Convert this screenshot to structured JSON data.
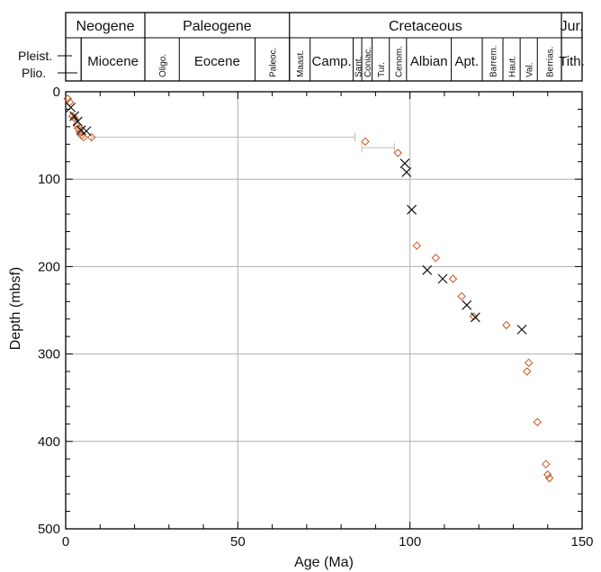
{
  "timescale": {
    "periods": [
      {
        "label": "Neogene",
        "start": 0,
        "end": 23
      },
      {
        "label": "Paleogene",
        "start": 23,
        "end": 65
      },
      {
        "label": "Cretaceous",
        "start": 65,
        "end": 144
      },
      {
        "label": "Jur.",
        "start": 144,
        "end": 150
      }
    ],
    "epochs_side": [
      {
        "label": "Pleist."
      },
      {
        "label": "Plio."
      }
    ],
    "stages": [
      {
        "label": "Miocene",
        "start": 4.5,
        "end": 23,
        "vertical": false
      },
      {
        "label": "Oligo.",
        "start": 23,
        "end": 33,
        "vertical": true
      },
      {
        "label": "Eocene",
        "start": 33,
        "end": 55,
        "vertical": false
      },
      {
        "label": "Paleoc.",
        "start": 55,
        "end": 65,
        "vertical": true
      },
      {
        "label": "Maast.",
        "start": 65,
        "end": 71,
        "vertical": true
      },
      {
        "label": "Camp.",
        "start": 71,
        "end": 83.5,
        "vertical": false
      },
      {
        "label": "Sant.",
        "start": 83.5,
        "end": 86,
        "vertical": true
      },
      {
        "label": "Coniac.",
        "start": 86,
        "end": 89,
        "vertical": true
      },
      {
        "label": "Tur.",
        "start": 89,
        "end": 94,
        "vertical": true
      },
      {
        "label": "Cenom.",
        "start": 94,
        "end": 99,
        "vertical": true
      },
      {
        "label": "Albian",
        "start": 99,
        "end": 112,
        "vertical": false
      },
      {
        "label": "Apt.",
        "start": 112,
        "end": 121,
        "vertical": false
      },
      {
        "label": "Barrem.",
        "start": 121,
        "end": 127,
        "vertical": true
      },
      {
        "label": "Haut.",
        "start": 127,
        "end": 132,
        "vertical": true
      },
      {
        "label": "Val.",
        "start": 132,
        "end": 137,
        "vertical": true
      },
      {
        "label": "Berrias.",
        "start": 137,
        "end": 144,
        "vertical": true
      },
      {
        "label": "Tith.",
        "start": 144,
        "end": 150,
        "vertical": false
      }
    ]
  },
  "chart_data": {
    "type": "scatter",
    "xlabel": "Age (Ma)",
    "ylabel": "Depth (mbsf)",
    "xlim": [
      0,
      150
    ],
    "ylim": [
      500,
      0
    ],
    "x_ticks": [
      0,
      50,
      100,
      150
    ],
    "y_ticks": [
      0,
      100,
      200,
      300,
      400,
      500
    ],
    "grid": true,
    "series": [
      {
        "marker": "diamond",
        "color": "#c8541e",
        "points": [
          [
            0.6,
            8
          ],
          [
            1.2,
            12
          ],
          [
            2.0,
            28
          ],
          [
            2.5,
            30
          ],
          [
            3.2,
            38
          ],
          [
            3.6,
            42
          ],
          [
            4.1,
            46
          ],
          [
            4.6,
            50
          ],
          [
            5.2,
            52
          ],
          [
            7.5,
            52
          ],
          [
            87.0,
            57
          ],
          [
            96.5,
            70
          ],
          [
            102.0,
            176
          ],
          [
            107.5,
            190
          ],
          [
            112.5,
            214
          ],
          [
            115.0,
            234
          ],
          [
            118.5,
            257
          ],
          [
            128.0,
            267
          ],
          [
            134.5,
            310
          ],
          [
            134.0,
            320
          ],
          [
            137.0,
            378
          ],
          [
            139.5,
            426
          ],
          [
            140.0,
            438
          ],
          [
            140.5,
            442
          ]
        ],
        "xerr": [
          {
            "y": 52,
            "from": 7.5,
            "to": 84.0
          },
          {
            "y": 64,
            "from": 86.0,
            "to": 95.5
          }
        ]
      },
      {
        "marker": "x",
        "color": "#111111",
        "points": [
          [
            1.5,
            18
          ],
          [
            2.5,
            28
          ],
          [
            3.5,
            34
          ],
          [
            4.5,
            44
          ],
          [
            6.0,
            45
          ],
          [
            98.5,
            82
          ],
          [
            99.0,
            92
          ],
          [
            100.5,
            135
          ],
          [
            105.0,
            204
          ],
          [
            109.5,
            214
          ],
          [
            116.5,
            244
          ],
          [
            119.0,
            258
          ],
          [
            132.5,
            272
          ]
        ]
      }
    ]
  }
}
